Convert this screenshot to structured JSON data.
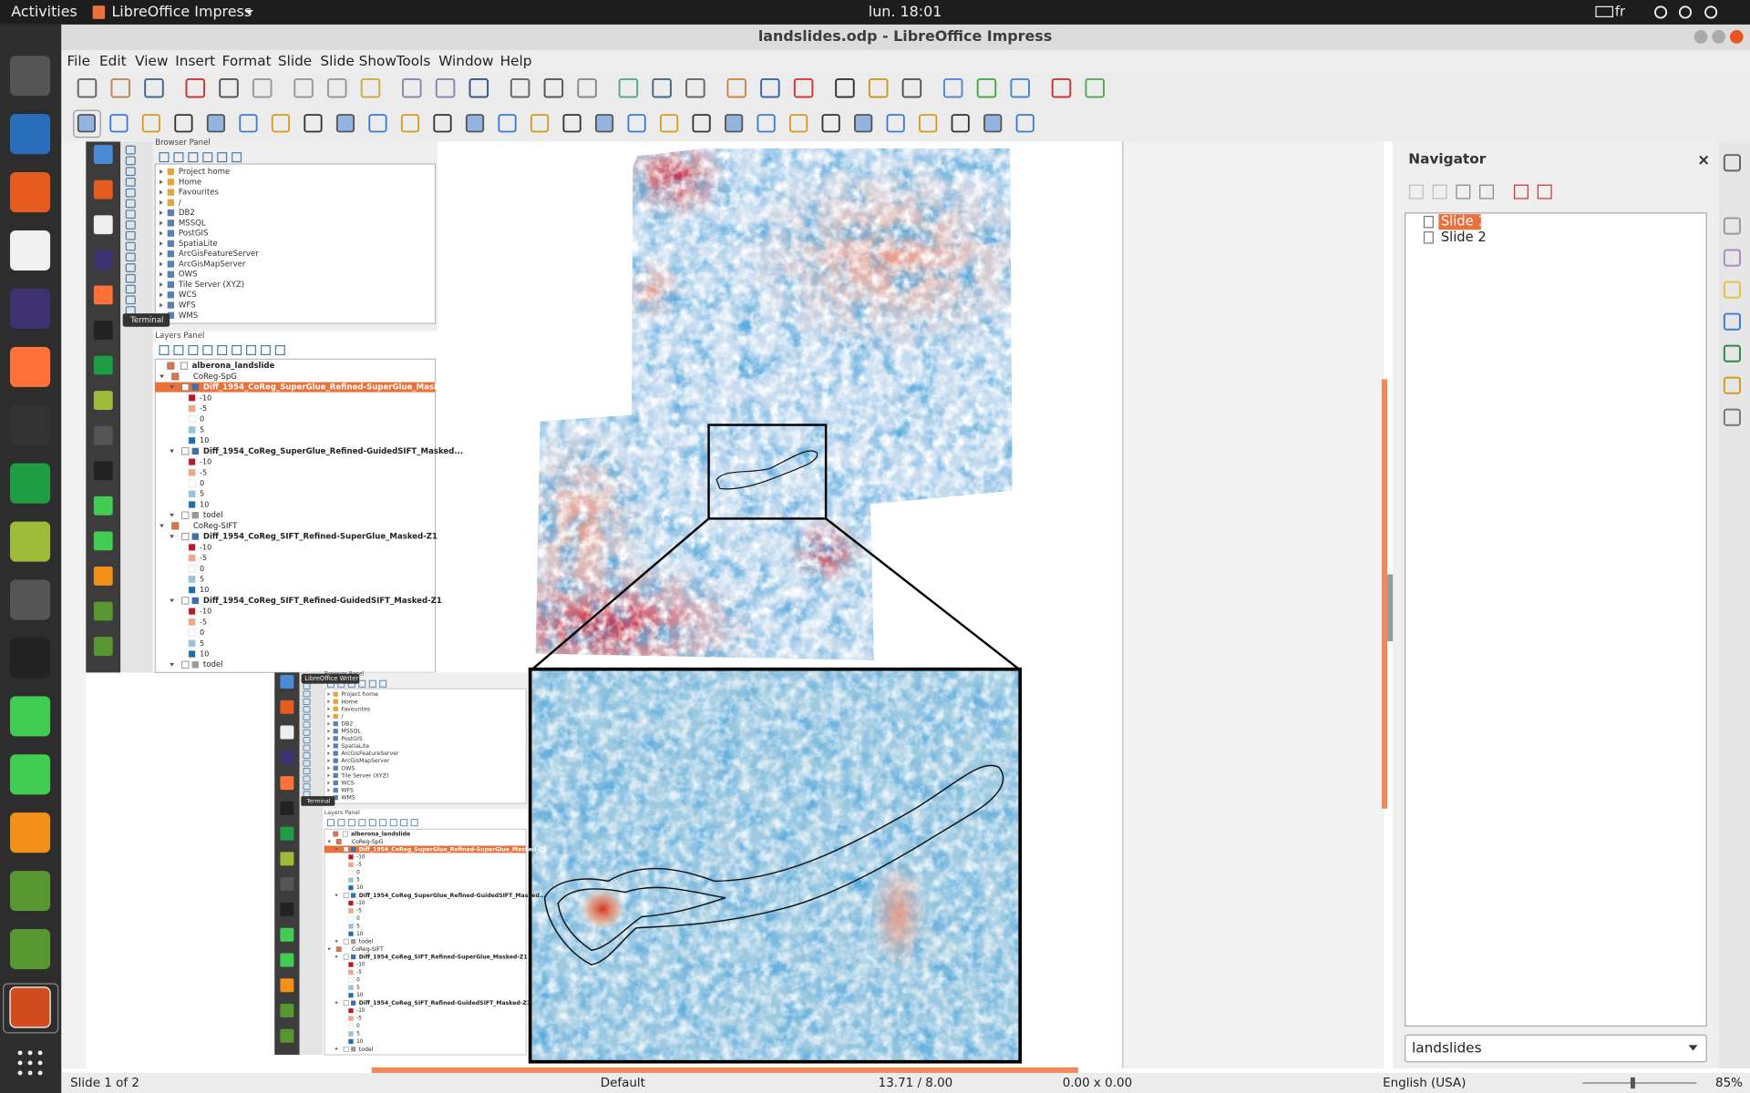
{
  "topbar": {
    "activities": "Activities",
    "app": "LibreOffice Impress",
    "clock": "lun. 18:01",
    "keyboard": "fr"
  },
  "window": {
    "title": "landslides.odp - LibreOffice Impress"
  },
  "menu": [
    "File",
    "Edit",
    "View",
    "Insert",
    "Format",
    "Slide",
    "Slide Show",
    "Tools",
    "Window",
    "Help"
  ],
  "qgis": {
    "browser_title": "Browser Panel",
    "browser_items": [
      "Project home",
      "Home",
      "Favourites",
      "/",
      "DB2",
      "MSSQL",
      "PostGIS",
      "SpatiaLite",
      "ArcGisFeatureServer",
      "ArcGisMapServer",
      "OWS",
      "Tile Server (XYZ)",
      "WCS",
      "WFS",
      "WMS"
    ],
    "tooltip": "Terminal",
    "layers_title": "Layers Panel",
    "layers": [
      {
        "name": "alberona_landslide"
      },
      {
        "name": "CoReg-SpG",
        "children": [
          {
            "name": "Diff_1954_CoReg_SuperGlue_Refined-SuperGlue_Masked-Z1",
            "selected": true,
            "legend": [
              "-10",
              "-5",
              "0",
              "5",
              "10"
            ]
          },
          {
            "name": "Diff_1954_CoReg_SuperGlue_Refined-GuidedSIFT_Masked...",
            "legend": [
              "-10",
              "-5",
              "0",
              "5",
              "10"
            ]
          },
          {
            "name": "todel"
          }
        ]
      },
      {
        "name": "CoReg-SIFT",
        "children": [
          {
            "name": "Diff_1954_CoReg_SIFT_Refined-SuperGlue_Masked-Z1",
            "legend": [
              "-10",
              "-5",
              "0",
              "5",
              "10"
            ]
          },
          {
            "name": "Diff_1954_CoReg_SIFT_Refined-GuidedSIFT_Masked-Z1",
            "legend": [
              "-10",
              "-5",
              "0",
              "5",
              "10"
            ]
          },
          {
            "name": "todel"
          }
        ]
      }
    ]
  },
  "inset_tooltip": "LibreOffice Writer",
  "navigator": {
    "title": "Navigator",
    "slides": [
      "Slide 1",
      "Slide 2"
    ],
    "document": "landslides"
  },
  "status": {
    "slide": "Slide 1 of 2",
    "layout": "Default",
    "position": "13.71 / 8.00",
    "size": "0.00 x 0.00",
    "language": "English (USA)",
    "zoom": "85%"
  }
}
